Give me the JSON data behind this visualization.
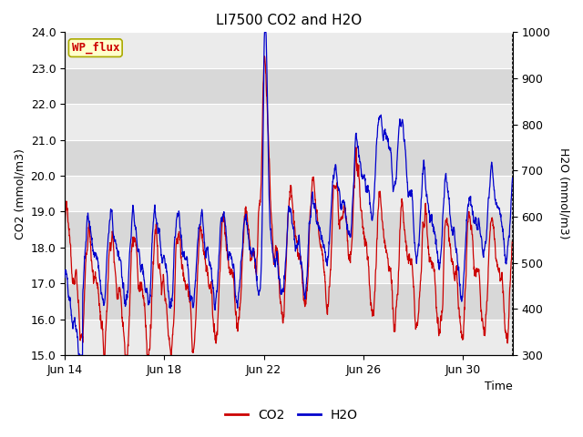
{
  "title": "LI7500 CO2 and H2O",
  "xlabel": "Time",
  "ylabel_left": "CO2 (mmol/m3)",
  "ylabel_right": "H2O (mmol/m3)",
  "ylim_left": [
    15.0,
    24.0
  ],
  "ylim_right": [
    300,
    1000
  ],
  "yticks_left": [
    15.0,
    16.0,
    17.0,
    18.0,
    19.0,
    20.0,
    21.0,
    22.0,
    23.0,
    24.0
  ],
  "yticks_right": [
    300,
    400,
    500,
    600,
    700,
    800,
    900,
    1000
  ],
  "xtick_labels": [
    "Jun 14",
    "Jun 18",
    "Jun 22",
    "Jun 26",
    "Jun 30"
  ],
  "xtick_positions": [
    0,
    4,
    8,
    12,
    16
  ],
  "xlim": [
    0,
    18
  ],
  "co2_color": "#cc0000",
  "h2o_color": "#0000cc",
  "bg_color": "#ffffff",
  "plot_bg_color": "#e0e0e0",
  "band_light": "#ebebeb",
  "band_dark": "#d8d8d8",
  "wp_flux_label": "WP_flux",
  "wp_flux_bg": "#ffffcc",
  "wp_flux_border": "#aaaa00",
  "wp_flux_text_color": "#cc0000",
  "legend_co2": "CO2",
  "legend_h2o": "H2O",
  "title_fontsize": 11,
  "axis_fontsize": 9,
  "tick_fontsize": 9,
  "linewidth": 0.9
}
